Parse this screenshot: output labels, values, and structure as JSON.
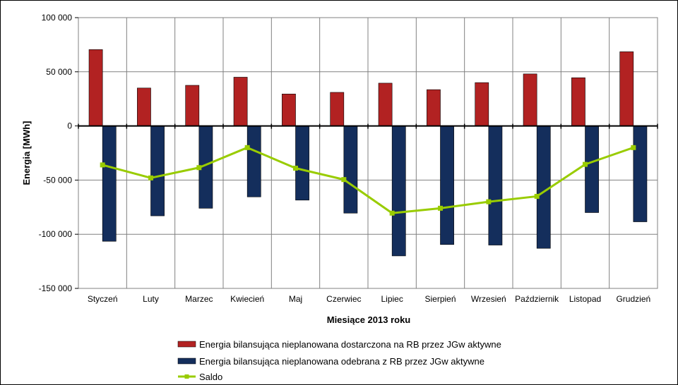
{
  "chart_data": {
    "type": "bar",
    "xlabel": "Miesiące 2013  roku",
    "ylabel": "Energia  [MWh]",
    "ylim": [
      -150000,
      100000
    ],
    "yticks": [
      100000,
      50000,
      0,
      -50000,
      -100000,
      -150000
    ],
    "ytick_labels": [
      "100 000",
      "50 000",
      "0",
      "-50 000",
      "-100 000",
      "-150 000"
    ],
    "grid": true,
    "legend_position": "bottom",
    "categories": [
      "Styczeń",
      "Luty",
      "Marzec",
      "Kwiecień",
      "Maj",
      "Czerwiec",
      "Lipiec",
      "Sierpień",
      "Wrzesień",
      "Październik",
      "Listopad",
      "Grudzień"
    ],
    "series": [
      {
        "name": "Energia bilansująca nieplanowana dostarczona na RB przez JGw aktywne",
        "type": "bar",
        "color": "#b22222",
        "values": [
          70500,
          35000,
          37500,
          45000,
          29500,
          31000,
          39500,
          33500,
          40000,
          48000,
          44500,
          68500
        ]
      },
      {
        "name": "Energia bilansująca nieplanowana odebrana z RB przez JGw aktywne",
        "type": "bar",
        "color": "#142e5c",
        "values": [
          -106500,
          -83000,
          -76000,
          -65500,
          -68500,
          -80500,
          -120000,
          -109500,
          -110000,
          -113000,
          -80000,
          -88500
        ]
      },
      {
        "name": "Saldo",
        "type": "line",
        "color": "#99cc00",
        "values": [
          -36000,
          -48000,
          -38500,
          -20000,
          -39000,
          -49500,
          -80500,
          -76000,
          -70000,
          -65000,
          -35500,
          -20000
        ]
      }
    ]
  }
}
